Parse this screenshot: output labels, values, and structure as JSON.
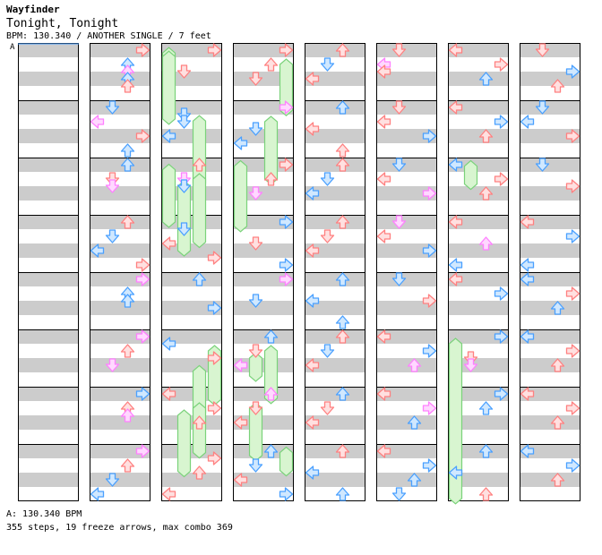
{
  "header": {
    "artist": "Wayfinder",
    "title": "Tonight, Tonight",
    "info": "BPM: 130.340 / ANOTHER SINGLE / 7 feet",
    "bpm_marker": "A"
  },
  "footer": {
    "bpm_line": "A: 130.340 BPM",
    "stats": "355 steps, 19 freeze arrows, max combo 369"
  },
  "chart_data": {
    "type": "step-chart",
    "columns": 8,
    "measures_per_column": 8,
    "lanes": [
      "left",
      "down",
      "up",
      "right"
    ],
    "colors": {
      "quarter_note": "#ff8080",
      "quarter_note_bg": "#ffe0e0",
      "eighth_note": "#4aa0ff",
      "eighth_note_bg": "#d0e8ff",
      "sixteenth_note": "#ff80ff",
      "sixteenth_note_bg": "#ffd8ff",
      "freeze": "#7ad27a",
      "freeze_bg": "#d8f5d0",
      "stripe": "#cccccc"
    },
    "arrows": [
      [
        1,
        0,
        0,
        "r"
      ],
      [
        1,
        0,
        2,
        "b"
      ],
      [
        1,
        0,
        3,
        "p"
      ],
      [
        1,
        0,
        4,
        "b"
      ],
      [
        1,
        0,
        5,
        "r"
      ],
      [
        1,
        1,
        0,
        "b"
      ],
      [
        1,
        1,
        2,
        "p"
      ],
      [
        1,
        1,
        4,
        "r"
      ],
      [
        1,
        1,
        6,
        "b"
      ],
      [
        1,
        2,
        0,
        "b"
      ],
      [
        1,
        2,
        2,
        "r"
      ],
      [
        1,
        2,
        3,
        "p"
      ],
      [
        1,
        3,
        0,
        "r"
      ],
      [
        1,
        3,
        2,
        "b"
      ],
      [
        1,
        3,
        4,
        "b"
      ],
      [
        1,
        3,
        6,
        "r"
      ],
      [
        1,
        4,
        0,
        "p"
      ],
      [
        1,
        4,
        2,
        "b"
      ],
      [
        1,
        4,
        3,
        "b"
      ],
      [
        1,
        5,
        0,
        "p"
      ],
      [
        1,
        5,
        2,
        "r"
      ],
      [
        1,
        5,
        4,
        "p"
      ],
      [
        1,
        6,
        0,
        "b"
      ],
      [
        1,
        6,
        2,
        "r"
      ],
      [
        1,
        6,
        3,
        "p"
      ],
      [
        1,
        7,
        0,
        "p"
      ],
      [
        1,
        7,
        2,
        "r"
      ],
      [
        1,
        7,
        4,
        "b"
      ],
      [
        1,
        7,
        6,
        "b"
      ],
      [
        2,
        0,
        0,
        "r"
      ],
      [
        2,
        0,
        3,
        "r"
      ],
      [
        2,
        1,
        1,
        "b"
      ],
      [
        2,
        1,
        2,
        "b"
      ],
      [
        2,
        1,
        4,
        "b"
      ],
      [
        2,
        2,
        0,
        "r"
      ],
      [
        2,
        2,
        2,
        "p"
      ],
      [
        2,
        2,
        3,
        "b"
      ],
      [
        2,
        3,
        1,
        "b"
      ],
      [
        2,
        3,
        3,
        "r"
      ],
      [
        2,
        3,
        5,
        "r"
      ],
      [
        2,
        4,
        0,
        "b"
      ],
      [
        2,
        4,
        4,
        "b"
      ],
      [
        2,
        5,
        1,
        "b"
      ],
      [
        2,
        5,
        3,
        "r"
      ],
      [
        2,
        6,
        0,
        "r"
      ],
      [
        2,
        6,
        2,
        "r"
      ],
      [
        2,
        6,
        4,
        "r"
      ],
      [
        2,
        7,
        1,
        "r"
      ],
      [
        2,
        7,
        3,
        "r"
      ],
      [
        2,
        7,
        6,
        "r"
      ],
      [
        3,
        0,
        0,
        "r"
      ],
      [
        3,
        0,
        2,
        "r"
      ],
      [
        3,
        0,
        4,
        "r"
      ],
      [
        3,
        1,
        0,
        "p"
      ],
      [
        3,
        1,
        3,
        "b"
      ],
      [
        3,
        1,
        5,
        "b"
      ],
      [
        3,
        2,
        0,
        "r"
      ],
      [
        3,
        2,
        2,
        "r"
      ],
      [
        3,
        2,
        4,
        "p"
      ],
      [
        3,
        3,
        0,
        "b"
      ],
      [
        3,
        3,
        3,
        "r"
      ],
      [
        3,
        3,
        6,
        "b"
      ],
      [
        3,
        4,
        0,
        "p"
      ],
      [
        3,
        4,
        3,
        "b"
      ],
      [
        3,
        5,
        0,
        "b"
      ],
      [
        3,
        5,
        2,
        "r"
      ],
      [
        3,
        5,
        4,
        "p"
      ],
      [
        3,
        6,
        0,
        "p"
      ],
      [
        3,
        6,
        2,
        "r"
      ],
      [
        3,
        6,
        4,
        "r"
      ],
      [
        3,
        7,
        0,
        "b"
      ],
      [
        3,
        7,
        2,
        "b"
      ],
      [
        3,
        7,
        4,
        "r"
      ],
      [
        3,
        7,
        6,
        "b"
      ],
      [
        4,
        0,
        0,
        "r"
      ],
      [
        4,
        0,
        2,
        "b"
      ],
      [
        4,
        0,
        4,
        "r"
      ],
      [
        4,
        1,
        0,
        "b"
      ],
      [
        4,
        1,
        3,
        "r"
      ],
      [
        4,
        1,
        6,
        "r"
      ],
      [
        4,
        2,
        0,
        "r"
      ],
      [
        4,
        2,
        2,
        "b"
      ],
      [
        4,
        2,
        4,
        "b"
      ],
      [
        4,
        3,
        0,
        "r"
      ],
      [
        4,
        3,
        2,
        "r"
      ],
      [
        4,
        3,
        4,
        "r"
      ],
      [
        4,
        4,
        0,
        "b"
      ],
      [
        4,
        4,
        3,
        "b"
      ],
      [
        4,
        4,
        6,
        "b"
      ],
      [
        4,
        5,
        0,
        "r"
      ],
      [
        4,
        5,
        2,
        "b"
      ],
      [
        4,
        5,
        4,
        "r"
      ],
      [
        4,
        6,
        0,
        "b"
      ],
      [
        4,
        6,
        2,
        "r"
      ],
      [
        4,
        6,
        4,
        "r"
      ],
      [
        4,
        7,
        0,
        "r"
      ],
      [
        4,
        7,
        3,
        "b"
      ],
      [
        4,
        7,
        6,
        "b"
      ],
      [
        5,
        0,
        0,
        "r"
      ],
      [
        5,
        0,
        2,
        "p"
      ],
      [
        5,
        0,
        3,
        "r"
      ],
      [
        5,
        1,
        0,
        "r"
      ],
      [
        5,
        1,
        2,
        "r"
      ],
      [
        5,
        1,
        4,
        "b"
      ],
      [
        5,
        2,
        0,
        "b"
      ],
      [
        5,
        2,
        2,
        "r"
      ],
      [
        5,
        2,
        4,
        "p"
      ],
      [
        5,
        3,
        0,
        "p"
      ],
      [
        5,
        3,
        2,
        "r"
      ],
      [
        5,
        3,
        4,
        "b"
      ],
      [
        5,
        4,
        0,
        "b"
      ],
      [
        5,
        4,
        3,
        "r"
      ],
      [
        5,
        5,
        0,
        "r"
      ],
      [
        5,
        5,
        2,
        "b"
      ],
      [
        5,
        5,
        4,
        "p"
      ],
      [
        5,
        6,
        0,
        "r"
      ],
      [
        5,
        6,
        2,
        "p"
      ],
      [
        5,
        6,
        4,
        "b"
      ],
      [
        5,
        7,
        0,
        "r"
      ],
      [
        5,
        7,
        2,
        "b"
      ],
      [
        5,
        7,
        4,
        "b"
      ],
      [
        5,
        7,
        6,
        "b"
      ],
      [
        6,
        0,
        0,
        "r"
      ],
      [
        6,
        0,
        2,
        "r"
      ],
      [
        6,
        0,
        4,
        "b"
      ],
      [
        6,
        1,
        0,
        "r"
      ],
      [
        6,
        1,
        2,
        "b"
      ],
      [
        6,
        1,
        4,
        "r"
      ],
      [
        6,
        2,
        0,
        "b"
      ],
      [
        6,
        2,
        2,
        "r"
      ],
      [
        6,
        2,
        4,
        "r"
      ],
      [
        6,
        3,
        0,
        "r"
      ],
      [
        6,
        3,
        3,
        "p"
      ],
      [
        6,
        3,
        6,
        "b"
      ],
      [
        6,
        4,
        0,
        "r"
      ],
      [
        6,
        4,
        2,
        "b"
      ],
      [
        6,
        5,
        0,
        "b"
      ],
      [
        6,
        5,
        3,
        "r"
      ],
      [
        6,
        5,
        4,
        "p"
      ],
      [
        6,
        6,
        0,
        "b"
      ],
      [
        6,
        6,
        2,
        "b"
      ],
      [
        6,
        7,
        0,
        "b"
      ],
      [
        6,
        7,
        3,
        "b"
      ],
      [
        6,
        7,
        6,
        "r"
      ],
      [
        7,
        0,
        0,
        "r"
      ],
      [
        7,
        0,
        3,
        "b"
      ],
      [
        7,
        0,
        5,
        "r"
      ],
      [
        7,
        1,
        0,
        "b"
      ],
      [
        7,
        1,
        2,
        "b"
      ],
      [
        7,
        1,
        4,
        "r"
      ],
      [
        7,
        2,
        0,
        "b"
      ],
      [
        7,
        2,
        3,
        "r"
      ],
      [
        7,
        3,
        0,
        "r"
      ],
      [
        7,
        3,
        2,
        "b"
      ],
      [
        7,
        3,
        6,
        "b"
      ],
      [
        7,
        4,
        0,
        "b"
      ],
      [
        7,
        4,
        2,
        "r"
      ],
      [
        7,
        4,
        4,
        "b"
      ],
      [
        7,
        5,
        0,
        "b"
      ],
      [
        7,
        5,
        2,
        "r"
      ],
      [
        7,
        5,
        4,
        "r"
      ],
      [
        7,
        6,
        0,
        "r"
      ],
      [
        7,
        6,
        2,
        "r"
      ],
      [
        7,
        6,
        4,
        "r"
      ],
      [
        7,
        7,
        0,
        "b"
      ],
      [
        7,
        7,
        2,
        "b"
      ],
      [
        7,
        7,
        4,
        "r"
      ]
    ],
    "freezes": [
      [
        2,
        0,
        0.4,
        0,
        1.0
      ],
      [
        2,
        0,
        0.9,
        1,
        1.6
      ],
      [
        2,
        1,
        1.9,
        2,
        2.6
      ],
      [
        2,
        2,
        0.7,
        3,
        0.0
      ],
      [
        2,
        2,
        2.0,
        3,
        2.8
      ],
      [
        2,
        2,
        3.0,
        3,
        4.0
      ],
      [
        2,
        5,
        2.0,
        6,
        0.8
      ],
      [
        2,
        5,
        4.8,
        6,
        2.6
      ],
      [
        2,
        6,
        2.0,
        7,
        0.2
      ],
      [
        2,
        6,
        3.0,
        7,
        2.8
      ],
      [
        3,
        0,
        2.0,
        1,
        0.4
      ],
      [
        3,
        1,
        2.0,
        2,
        2.0
      ],
      [
        3,
        2,
        0.2,
        3,
        0.6
      ],
      [
        3,
        5,
        2.0,
        6,
        0.6
      ],
      [
        3,
        5,
        3.0,
        5,
        4.6
      ],
      [
        3,
        6,
        2.0,
        7,
        0.6
      ],
      [
        3,
        7,
        0.2,
        7,
        2.2
      ],
      [
        6,
        5,
        1.0,
        7,
        6.6
      ],
      [
        6,
        2,
        0.2,
        2,
        2.2
      ]
    ]
  }
}
